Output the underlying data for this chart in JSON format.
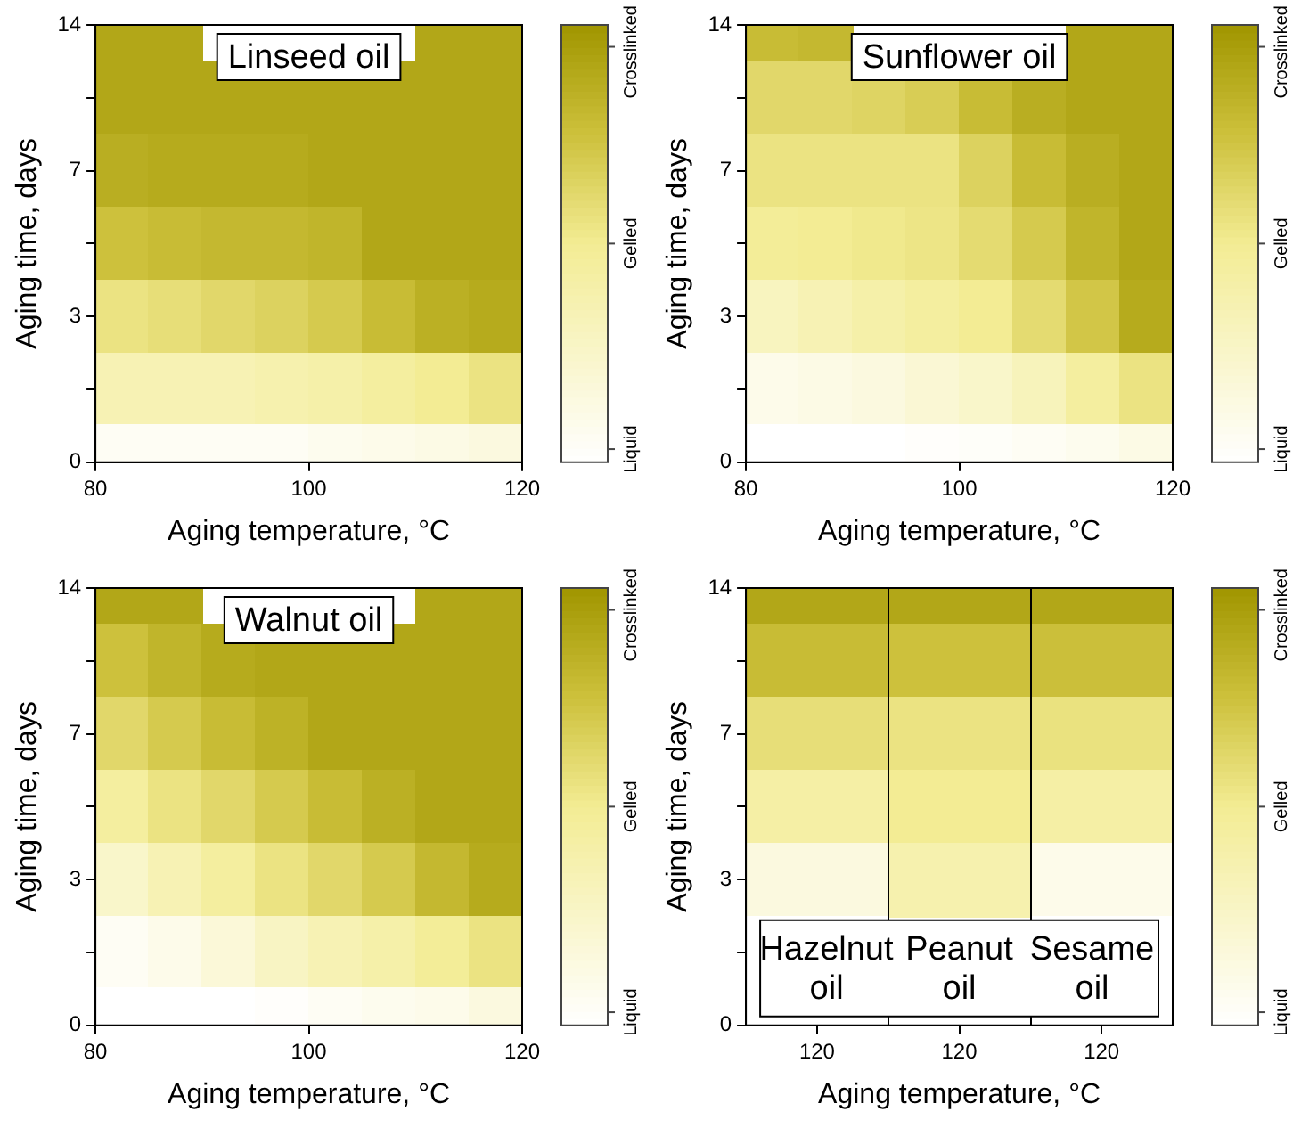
{
  "chart_data": [
    {
      "type": "heatmap",
      "title": "Linseed oil",
      "xlabel": "Aging temperature, °C",
      "ylabel": "Aging time, days",
      "x": [
        82.5,
        87.5,
        92.5,
        97.5,
        102.5,
        107.5,
        112.5,
        117.5
      ],
      "xlim": [
        80,
        120
      ],
      "xticks": [
        80,
        100,
        120
      ],
      "y_categories": [
        "14",
        null,
        "7",
        null,
        "3",
        null,
        "0"
      ],
      "clim": [
        0,
        1
      ],
      "cticks": [
        {
          "value": 0.03,
          "label": "Liquid"
        },
        {
          "value": 0.5,
          "label": "Gelled"
        },
        {
          "value": 0.95,
          "label": "Crosslinked"
        }
      ],
      "cells": [
        [
          0.9,
          0.9,
          null,
          null,
          null,
          null,
          0.9,
          0.9
        ],
        [
          0.9,
          0.9,
          0.9,
          0.9,
          0.9,
          0.9,
          0.9,
          0.9
        ],
        [
          0.86,
          0.88,
          0.88,
          0.88,
          0.9,
          0.9,
          0.9,
          0.9
        ],
        [
          0.75,
          0.78,
          0.8,
          0.8,
          0.82,
          0.9,
          0.9,
          0.9
        ],
        [
          0.55,
          0.58,
          0.62,
          0.65,
          0.7,
          0.78,
          0.85,
          0.88
        ],
        [
          0.35,
          0.35,
          0.35,
          0.38,
          0.4,
          0.45,
          0.5,
          0.55
        ],
        [
          0.05,
          0.05,
          0.05,
          0.05,
          0.08,
          0.1,
          0.12,
          0.15
        ]
      ]
    },
    {
      "type": "heatmap",
      "title": "Sunflower oil",
      "xlabel": "Aging temperature, °C",
      "ylabel": "Aging time, days",
      "x": [
        82.5,
        87.5,
        92.5,
        97.5,
        102.5,
        107.5,
        112.5,
        117.5
      ],
      "xlim": [
        80,
        120
      ],
      "xticks": [
        80,
        100,
        120
      ],
      "y_categories": [
        "14",
        null,
        "7",
        null,
        "3",
        null,
        "0"
      ],
      "clim": [
        0,
        1
      ],
      "cticks": [
        {
          "value": 0.03,
          "label": "Liquid"
        },
        {
          "value": 0.5,
          "label": "Gelled"
        },
        {
          "value": 0.95,
          "label": "Crosslinked"
        }
      ],
      "cells": [
        [
          0.78,
          0.8,
          null,
          null,
          null,
          null,
          0.9,
          0.9
        ],
        [
          0.62,
          0.62,
          0.64,
          0.68,
          0.78,
          0.86,
          0.9,
          0.9
        ],
        [
          0.55,
          0.55,
          0.55,
          0.55,
          0.65,
          0.78,
          0.86,
          0.9
        ],
        [
          0.48,
          0.5,
          0.52,
          0.54,
          0.6,
          0.7,
          0.82,
          0.9
        ],
        [
          0.3,
          0.35,
          0.4,
          0.45,
          0.5,
          0.6,
          0.72,
          0.88
        ],
        [
          0.1,
          0.12,
          0.15,
          0.2,
          0.25,
          0.32,
          0.45,
          0.55
        ],
        [
          0,
          0,
          0,
          0.02,
          0.03,
          0.05,
          0.08,
          0.12
        ]
      ]
    },
    {
      "type": "heatmap",
      "title": "Walnut oil",
      "xlabel": "Aging temperature, °C",
      "ylabel": "Aging time, days",
      "x": [
        82.5,
        87.5,
        92.5,
        97.5,
        102.5,
        107.5,
        112.5,
        117.5
      ],
      "xlim": [
        80,
        120
      ],
      "xticks": [
        80,
        100,
        120
      ],
      "y_categories": [
        "14",
        null,
        "7",
        null,
        "3",
        null,
        "0"
      ],
      "clim": [
        0,
        1
      ],
      "cticks": [
        {
          "value": 0.03,
          "label": "Liquid"
        },
        {
          "value": 0.5,
          "label": "Gelled"
        },
        {
          "value": 0.95,
          "label": "Crosslinked"
        }
      ],
      "cells": [
        [
          0.9,
          0.9,
          null,
          null,
          null,
          null,
          0.9,
          0.9
        ],
        [
          0.75,
          0.82,
          0.88,
          0.9,
          0.9,
          0.9,
          0.9,
          0.9
        ],
        [
          0.62,
          0.7,
          0.78,
          0.84,
          0.9,
          0.9,
          0.9,
          0.9
        ],
        [
          0.45,
          0.55,
          0.62,
          0.7,
          0.78,
          0.85,
          0.9,
          0.9
        ],
        [
          0.25,
          0.35,
          0.45,
          0.55,
          0.62,
          0.7,
          0.8,
          0.88
        ],
        [
          0.05,
          0.1,
          0.18,
          0.28,
          0.35,
          0.4,
          0.48,
          0.55
        ],
        [
          0,
          0,
          0,
          0.02,
          0.05,
          0.08,
          0.1,
          0.15
        ]
      ]
    },
    {
      "type": "heatmap",
      "xlabel": "Aging temperature, °C",
      "ylabel": "Aging time, days",
      "categories": [
        "120",
        "120",
        "120"
      ],
      "y_categories": [
        "14",
        null,
        "7",
        null,
        "3",
        null,
        "0"
      ],
      "clim": [
        0,
        1
      ],
      "cticks": [
        {
          "value": 0.03,
          "label": "Liquid"
        },
        {
          "value": 0.5,
          "label": "Gelled"
        },
        {
          "value": 0.95,
          "label": "Crosslinked"
        }
      ],
      "annotations": [
        "Hazelnut oil",
        "Peanut oil",
        "Sesame oil"
      ],
      "cells": [
        [
          0.9,
          0.9,
          0.9
        ],
        [
          0.78,
          0.75,
          0.76
        ],
        [
          0.58,
          0.55,
          0.56
        ],
        [
          0.42,
          0.5,
          0.42
        ],
        [
          0.15,
          0.38,
          0.1
        ],
        [
          0,
          null,
          0
        ],
        [
          0,
          null,
          0
        ]
      ]
    }
  ]
}
